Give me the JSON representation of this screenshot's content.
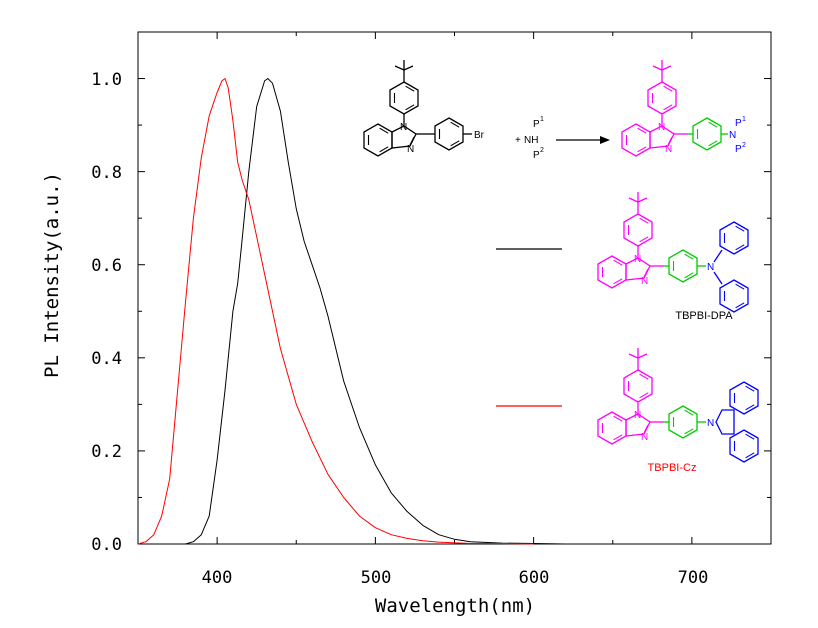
{
  "chart_data": {
    "type": "line",
    "xlabel": "Wavelength(nm)",
    "ylabel": "PL Intensity(a.u.)",
    "xlim": [
      350,
      750
    ],
    "ylim": [
      0,
      1.1
    ],
    "xticks": [
      "400",
      "500",
      "600",
      "700"
    ],
    "yticks": [
      "0.0",
      "0.2",
      "0.4",
      "0.6",
      "0.8",
      "1.0"
    ],
    "legend": "right",
    "series": [
      {
        "name": "TBPBI-DPA",
        "color": "#000000",
        "x": [
          350,
          370,
          380,
          385,
          390,
          395,
          400,
          405,
          410,
          413,
          416,
          420,
          425,
          430,
          432,
          435,
          440,
          445,
          450,
          455,
          460,
          465,
          470,
          475,
          480,
          490,
          500,
          510,
          520,
          530,
          540,
          550,
          560,
          580,
          600,
          620
        ],
        "y": [
          0,
          0,
          0,
          0.005,
          0.02,
          0.06,
          0.18,
          0.33,
          0.5,
          0.56,
          0.66,
          0.8,
          0.94,
          0.995,
          1.0,
          0.99,
          0.93,
          0.82,
          0.72,
          0.65,
          0.6,
          0.55,
          0.49,
          0.42,
          0.35,
          0.25,
          0.17,
          0.11,
          0.07,
          0.04,
          0.02,
          0.01,
          0.005,
          0.002,
          0.001,
          0
        ]
      },
      {
        "name": "TBPBI-Cz",
        "color": "#ff0000",
        "x": [
          350,
          355,
          360,
          365,
          370,
          375,
          380,
          385,
          390,
          395,
          400,
          403,
          405,
          407,
          410,
          413,
          416,
          420,
          425,
          430,
          440,
          450,
          460,
          470,
          480,
          490,
          500,
          510,
          520,
          530,
          540,
          560,
          580,
          600
        ],
        "y": [
          0,
          0.005,
          0.02,
          0.06,
          0.14,
          0.33,
          0.52,
          0.7,
          0.83,
          0.92,
          0.97,
          0.995,
          1.0,
          0.98,
          0.91,
          0.82,
          0.78,
          0.74,
          0.66,
          0.58,
          0.42,
          0.3,
          0.22,
          0.15,
          0.1,
          0.06,
          0.035,
          0.02,
          0.012,
          0.007,
          0.004,
          0.001,
          0.001,
          0
        ]
      }
    ]
  },
  "scheme": {
    "reactant_br": "Br",
    "plus": "+",
    "amine_p1": "P",
    "amine_p1_sup": "1",
    "amine_nh": "NH",
    "amine_p2": "P",
    "amine_p2_sup": "2",
    "product_p1": "P",
    "product_p1_sup": "1",
    "product_n": "N",
    "product_p2": "P",
    "product_p2_sup": "2"
  },
  "structures": [
    {
      "caption": "TBPBI-DPA",
      "caption_color": "#000000"
    },
    {
      "caption": "TBPBI-Cz",
      "caption_color": "#ff0000"
    }
  ],
  "colors": {
    "core": "#ff00ff",
    "linker": "#00cc00",
    "donor": "#0000ff",
    "black": "#000000"
  }
}
